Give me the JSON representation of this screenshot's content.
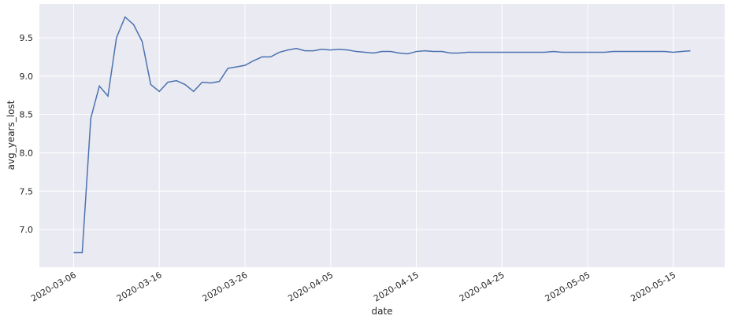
{
  "chart_data": {
    "type": "line",
    "x_label": "date",
    "y_label": "avg_years_lost",
    "x": [
      "2020-03-06",
      "2020-03-07",
      "2020-03-08",
      "2020-03-09",
      "2020-03-10",
      "2020-03-11",
      "2020-03-12",
      "2020-03-13",
      "2020-03-14",
      "2020-03-15",
      "2020-03-16",
      "2020-03-17",
      "2020-03-18",
      "2020-03-19",
      "2020-03-20",
      "2020-03-21",
      "2020-03-22",
      "2020-03-23",
      "2020-03-24",
      "2020-03-25",
      "2020-03-26",
      "2020-03-27",
      "2020-03-28",
      "2020-03-29",
      "2020-03-30",
      "2020-03-31",
      "2020-04-01",
      "2020-04-02",
      "2020-04-03",
      "2020-04-04",
      "2020-04-05",
      "2020-04-06",
      "2020-04-07",
      "2020-04-08",
      "2020-04-09",
      "2020-04-10",
      "2020-04-11",
      "2020-04-12",
      "2020-04-13",
      "2020-04-14",
      "2020-04-15",
      "2020-04-16",
      "2020-04-17",
      "2020-04-18",
      "2020-04-19",
      "2020-04-20",
      "2020-04-21",
      "2020-04-22",
      "2020-04-23",
      "2020-04-24",
      "2020-04-25",
      "2020-04-26",
      "2020-04-27",
      "2020-04-28",
      "2020-04-29",
      "2020-04-30",
      "2020-05-01",
      "2020-05-02",
      "2020-05-03",
      "2020-05-04",
      "2020-05-05",
      "2020-05-06",
      "2020-05-07",
      "2020-05-08",
      "2020-05-09",
      "2020-05-10",
      "2020-05-11",
      "2020-05-12",
      "2020-05-13",
      "2020-05-14",
      "2020-05-15",
      "2020-05-16",
      "2020-05-17"
    ],
    "series": [
      {
        "name": "avg_years_lost",
        "color": "#4c72b0",
        "values": [
          6.7,
          6.7,
          8.45,
          8.87,
          8.74,
          9.5,
          9.77,
          9.67,
          9.45,
          8.89,
          8.8,
          8.92,
          8.94,
          8.89,
          8.8,
          8.92,
          8.91,
          8.93,
          9.1,
          9.12,
          9.14,
          9.2,
          9.25,
          9.25,
          9.31,
          9.34,
          9.36,
          9.33,
          9.33,
          9.35,
          9.34,
          9.35,
          9.34,
          9.32,
          9.31,
          9.3,
          9.32,
          9.32,
          9.3,
          9.29,
          9.32,
          9.33,
          9.32,
          9.32,
          9.3,
          9.3,
          9.31,
          9.31,
          9.31,
          9.31,
          9.31,
          9.31,
          9.31,
          9.31,
          9.31,
          9.31,
          9.32,
          9.31,
          9.31,
          9.31,
          9.31,
          9.31,
          9.31,
          9.32,
          9.32,
          9.32,
          9.32,
          9.32,
          9.32,
          9.32,
          9.31,
          9.32,
          9.33
        ]
      }
    ],
    "xlim": [
      "2020-03-02",
      "2020-05-21"
    ],
    "xticks": [
      "2020-03-06",
      "2020-03-16",
      "2020-03-26",
      "2020-04-05",
      "2020-04-15",
      "2020-04-25",
      "2020-05-05",
      "2020-05-15"
    ],
    "ylim": [
      6.51,
      9.94
    ],
    "yticks": [
      {
        "value": 7,
        "label": "7.0"
      },
      7.5,
      {
        "value": 8,
        "label": "8.0"
      },
      8.5,
      {
        "value": 9,
        "label": "9.0"
      },
      9.5
    ],
    "grid": true,
    "background": "#eaeaf2"
  }
}
